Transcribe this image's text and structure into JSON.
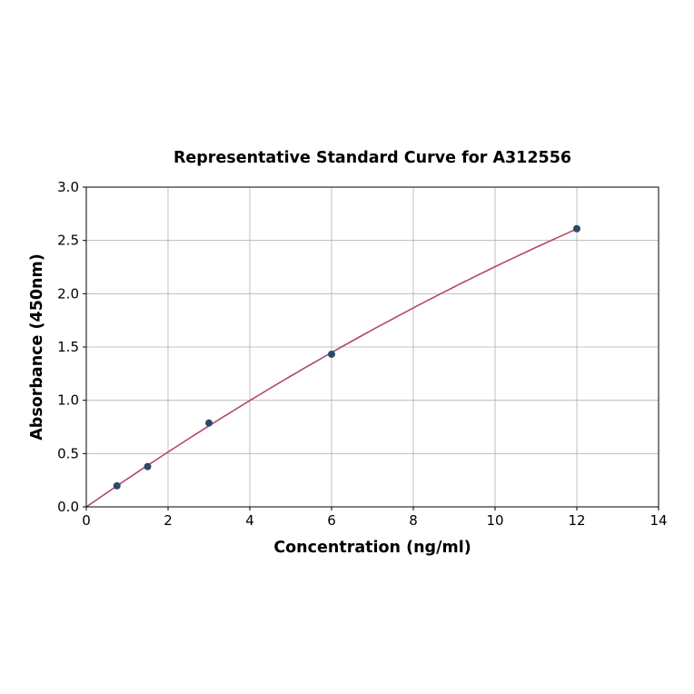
{
  "chart_data": {
    "type": "scatter",
    "title": "Representative Standard Curve for A312556",
    "xlabel": "Concentration (ng/ml)",
    "ylabel": "Absorbance (450nm)",
    "xlim": [
      0,
      14
    ],
    "ylim": [
      0,
      3.0
    ],
    "xticks": [
      "0",
      "2",
      "4",
      "6",
      "8",
      "10",
      "12",
      "14"
    ],
    "yticks": [
      "0.0",
      "0.5",
      "1.0",
      "1.5",
      "2.0",
      "2.5",
      "3.0"
    ],
    "grid": true,
    "points": {
      "x": [
        0.75,
        1.5,
        3,
        6,
        12
      ],
      "y": [
        0.198,
        0.378,
        0.787,
        1.432,
        2.61
      ]
    },
    "fit_curve": true,
    "colors": {
      "points": "#2b4a6b",
      "curve": "#b5476b",
      "grid": "#b0b0b0"
    }
  }
}
